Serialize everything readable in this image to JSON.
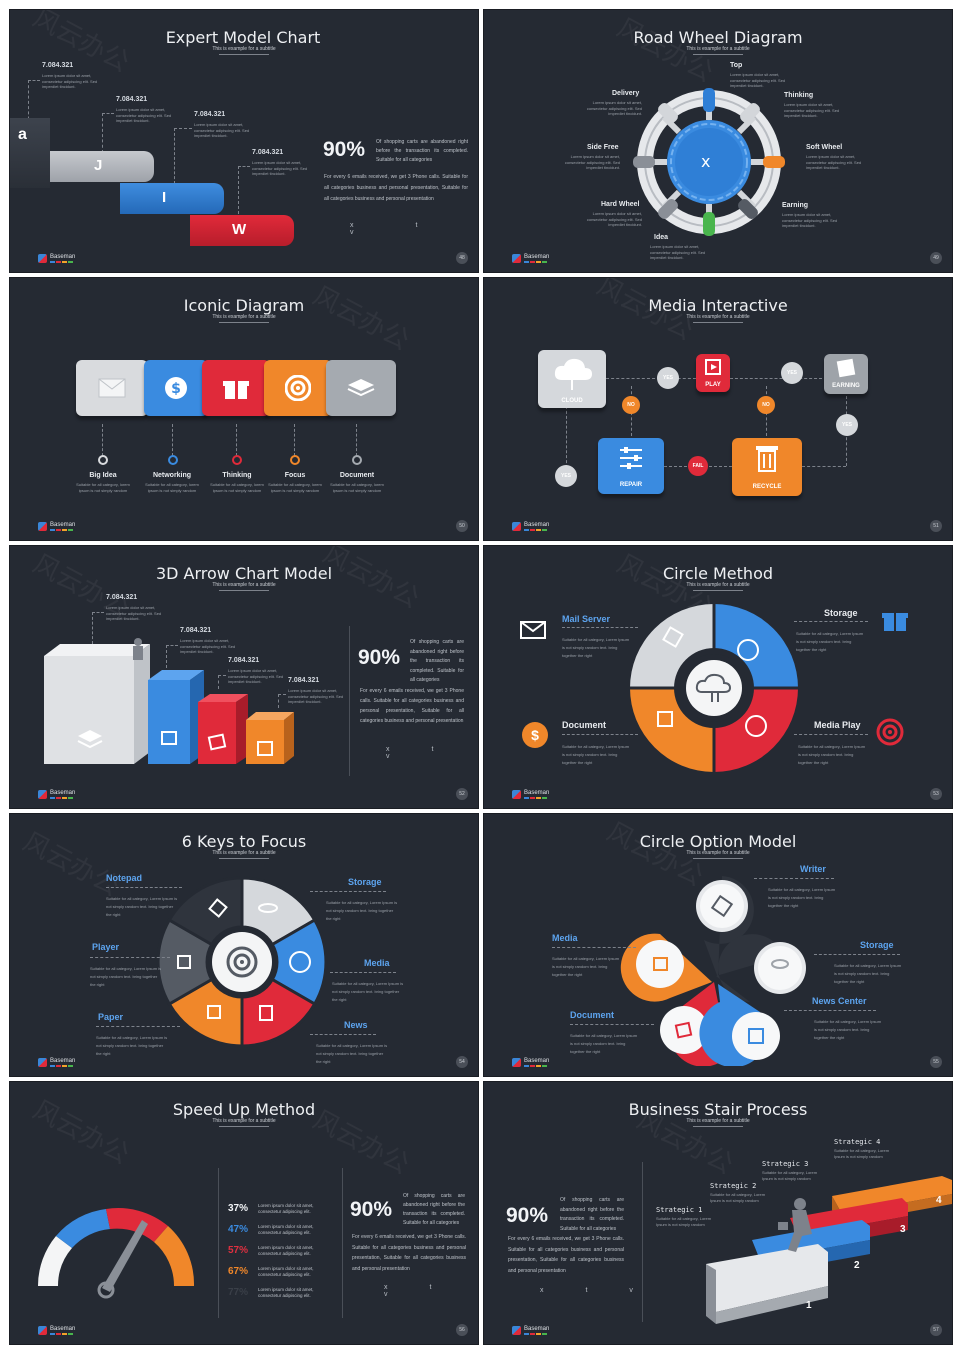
{
  "common": {
    "subtitle": "This is example  for a subtitle",
    "logo_text": "Baseman",
    "watermark": "风云办公",
    "lorem3": "Lorem ipsum dolor sit amet, consectetur adipiscing elit. Sed imperdiet tincidunt.",
    "suitable": "Suitable for all category, Lorem Ipsum is not simply random text. bring together the right",
    "suitable_short": "Suitable for all category, lorem ipsum is not simply random"
  },
  "slides": [
    {
      "title": "Expert Model Chart",
      "page": "48",
      "values": [
        "7.084.321",
        "7.084.321",
        "7.084.321",
        "7.084.321"
      ],
      "steps": [
        "a",
        "J",
        "I",
        "W"
      ],
      "percent": "90%",
      "percent_text": "Of shopping carts are abandoned right before the transaction its completed. Suitable for all categories",
      "body": "For every 6 emails received, we get 3 Phone calls. Suitable for all categories business and personal presentation, Suitable for all categories business and personal presentation",
      "xtv": "x t v"
    },
    {
      "title": "Road Wheel Diagram",
      "page": "49",
      "center": "x",
      "labels": {
        "top": "Top",
        "delivery": "Delivery",
        "thinking": "Thinking",
        "side_free": "Side Free",
        "soft_wheel": "Soft Wheel",
        "hard_wheel": "Hard Wheel",
        "earning": "Earning",
        "idea": "Idea"
      }
    },
    {
      "title": "Iconic Diagram",
      "page": "50",
      "items": [
        "Big Idea",
        "Networking",
        "Thinking",
        "Focus",
        "Document"
      ],
      "item_text": "Suitable for all category, lorem ipsum is not simply random"
    },
    {
      "title": "Media Interactive",
      "page": "51",
      "nodes": {
        "cloud": "CLOUD",
        "play": "PLAY",
        "earning": "EARNING",
        "repair": "REPAIR",
        "recycle": "RECYCLE",
        "yes": "YES",
        "no": "NO",
        "fail": "FAIL"
      }
    },
    {
      "title": "3D Arrow Chart Model",
      "page": "52",
      "values": [
        "7.084.321",
        "7.084.321",
        "7.084.321",
        "7.084.321"
      ],
      "percent": "90%",
      "percent_text": "Of shopping carts are abandoned right before the transaction its completed. Suitable for all categories",
      "body": "For every 6 emails received, we get 3 Phone calls. Suitable for all categories business and personal presentation, Suitable for all categories business and personal presentation",
      "xtv": "x t v"
    },
    {
      "title": "Circle Method",
      "page": "53",
      "labels": {
        "mail": "Mail Server",
        "storage": "Storage",
        "document": "Document",
        "media": "Media Play"
      }
    },
    {
      "title": "6 Keys to Focus",
      "page": "54",
      "labels": {
        "notepad": "Notepad",
        "storage": "Storage",
        "player": "Player",
        "media": "Media",
        "paper": "Paper",
        "news": "News"
      }
    },
    {
      "title": "Circle Option Model",
      "page": "55",
      "labels": {
        "writer": "Writer",
        "media": "Media",
        "storage": "Storage",
        "news": "News Center",
        "document": "Document"
      }
    },
    {
      "title": "Speed Up Method",
      "page": "56",
      "stats": [
        {
          "pct": "37%",
          "color": "#f2f4f7"
        },
        {
          "pct": "47%",
          "color": "#3a8be0"
        },
        {
          "pct": "57%",
          "color": "#e03040"
        },
        {
          "pct": "67%",
          "color": "#f0872a"
        },
        {
          "pct": "77%",
          "color": "#3a3f48"
        }
      ],
      "stat_text": "Lorem ipsum dolor sit amet, consectetur adipiscing elit.",
      "percent": "90%",
      "percent_text": "Of shopping carts are abandoned right before the transaction its completed. Suitable for all categories",
      "body": "For every 6 emails received, we get 3 Phone calls. Suitable for all categories business and personal presentation, Suitable for all categories business and personal presentation",
      "xtv": "x t v"
    },
    {
      "title": "Business Stair Process",
      "page": "57",
      "strategies": [
        "Strategic 1",
        "Strategic 2",
        "Strategic 3",
        "Strategic 4"
      ],
      "strategy_text": "Suitable for all category, Lorem Ipsum is not simply random",
      "steps": [
        "1",
        "2",
        "3",
        "4"
      ],
      "percent": "90%",
      "percent_text": "Of shopping carts are abandoned right before the transaction its completed. Suitable for all categories",
      "body": "For every 6 emails received, we get 3 Phone calls. Suitable for all categories business and personal presentation, Suitable for all categories business and personal presentation",
      "xtv": "x t v"
    }
  ]
}
